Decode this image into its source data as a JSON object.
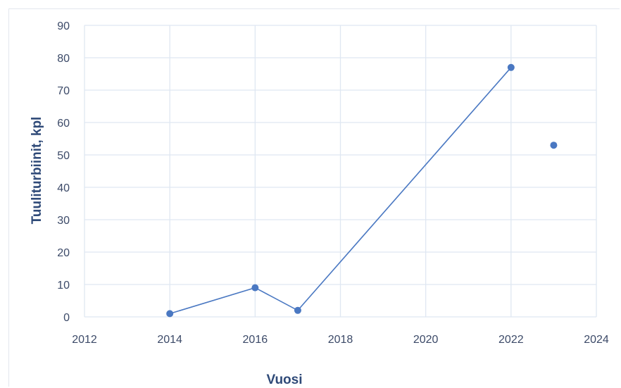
{
  "chart_data": {
    "type": "scatter",
    "mode": "lines+markers",
    "title": "",
    "xlabel": "Vuosi",
    "ylabel": "Tuuliturbiinit, kpl",
    "xlim": [
      2012,
      2024
    ],
    "ylim": [
      0,
      90
    ],
    "xticks": [
      2012,
      2014,
      2016,
      2018,
      2020,
      2022,
      2024
    ],
    "yticks": [
      0,
      10,
      20,
      30,
      40,
      50,
      60,
      70,
      80,
      90
    ],
    "grid": true,
    "legend": "none",
    "color": "#4a78c2",
    "series": [
      {
        "x": [
          2014,
          2016,
          2017,
          2022,
          2023
        ],
        "y": [
          1,
          9,
          2,
          77,
          53
        ],
        "segments": [
          [
            0,
            1,
            2,
            3
          ]
        ],
        "standalone_points": [
          4
        ]
      }
    ]
  }
}
